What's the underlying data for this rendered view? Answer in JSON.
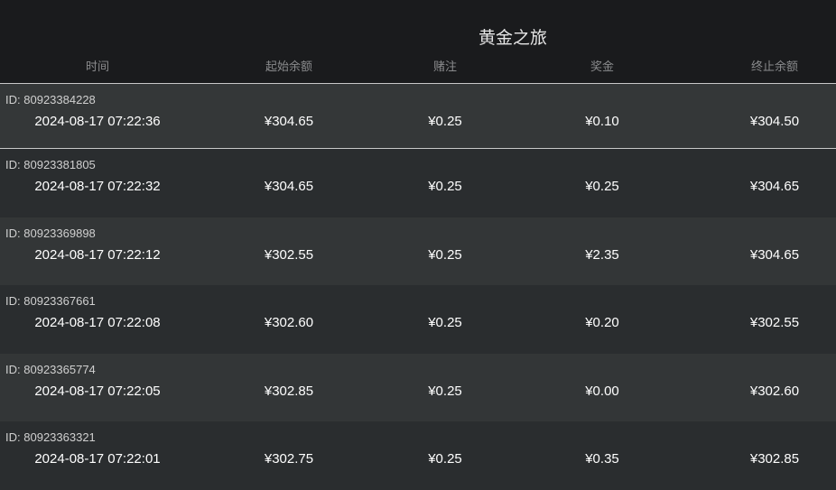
{
  "header": {
    "title": "黄金之旅",
    "columns": [
      "时间",
      "起始余额",
      "赌注",
      "奖金",
      "终止余额"
    ]
  },
  "id_prefix": "ID:",
  "rows": [
    {
      "id": "80923384228",
      "time": "2024-08-17 07:22:36",
      "start": "¥304.65",
      "bet": "¥0.25",
      "prize": "¥0.10",
      "end": "¥304.50",
      "selected": true
    },
    {
      "id": "80923381805",
      "time": "2024-08-17 07:22:32",
      "start": "¥304.65",
      "bet": "¥0.25",
      "prize": "¥0.25",
      "end": "¥304.65"
    },
    {
      "id": "80923369898",
      "time": "2024-08-17 07:22:12",
      "start": "¥302.55",
      "bet": "¥0.25",
      "prize": "¥2.35",
      "end": "¥304.65"
    },
    {
      "id": "80923367661",
      "time": "2024-08-17 07:22:08",
      "start": "¥302.60",
      "bet": "¥0.25",
      "prize": "¥0.20",
      "end": "¥302.55"
    },
    {
      "id": "80923365774",
      "time": "2024-08-17 07:22:05",
      "start": "¥302.85",
      "bet": "¥0.25",
      "prize": "¥0.00",
      "end": "¥302.60"
    },
    {
      "id": "80923363321",
      "time": "2024-08-17 07:22:01",
      "start": "¥302.75",
      "bet": "¥0.25",
      "prize": "¥0.35",
      "end": "¥302.85"
    }
  ]
}
